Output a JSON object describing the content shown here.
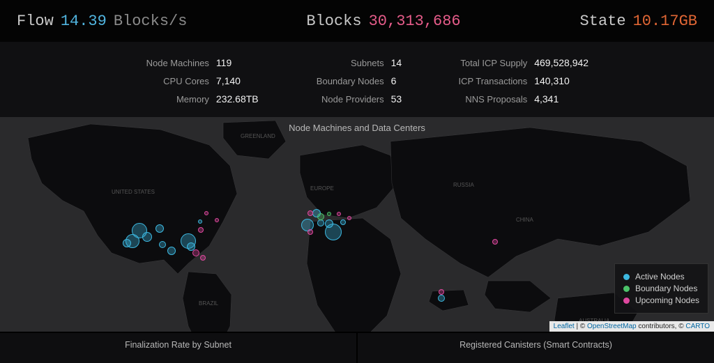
{
  "colors": {
    "bg_page": "#000000",
    "bg_stats": "#101012",
    "bg_map": "#2a2a2c",
    "land": "#0c0c0e",
    "label_muted": "#9a9a9a",
    "text": "#e8e8e8",
    "flow": "#51b5e0",
    "blocks": "#e65c8a",
    "state": "#e06634",
    "active": "#3db8e0",
    "boundary": "#4cc46a",
    "upcoming": "#e048a0"
  },
  "top": {
    "flow": {
      "label": "Flow",
      "value": "14.39",
      "unit": "Blocks/s"
    },
    "blocks": {
      "label": "Blocks",
      "value": "30,313,686"
    },
    "state": {
      "label": "State",
      "value": "10.17",
      "unit": "GB"
    }
  },
  "stats": {
    "col1": [
      {
        "label": "Node Machines",
        "value": "119"
      },
      {
        "label": "CPU Cores",
        "value": "7,140"
      },
      {
        "label": "Memory",
        "value": "232.68TB"
      }
    ],
    "col2": [
      {
        "label": "Subnets",
        "value": "14"
      },
      {
        "label": "Boundary Nodes",
        "value": "6"
      },
      {
        "label": "Node Providers",
        "value": "53"
      }
    ],
    "col3": [
      {
        "label": "Total ICP Supply",
        "value": "469,528,942"
      },
      {
        "label": "ICP Transactions",
        "value": "140,310"
      },
      {
        "label": "NNS Proposals",
        "value": "4,341"
      }
    ]
  },
  "map": {
    "title": "Node Machines and Data Centers",
    "legend": {
      "active": "Active Nodes",
      "boundary": "Boundary Nodes",
      "upcoming": "Upcoming Nodes"
    },
    "attribution": {
      "leaflet": "Leaflet",
      "sep": " | © ",
      "osm": "OpenStreetMap",
      "mid": " contributors, © ",
      "carto": "CARTO"
    },
    "markers": [
      {
        "x": 19.5,
        "y": 53.0,
        "r": 11,
        "kind": "active"
      },
      {
        "x": 20.6,
        "y": 55.8,
        "r": 7,
        "kind": "active"
      },
      {
        "x": 18.6,
        "y": 57.7,
        "r": 10,
        "kind": "active"
      },
      {
        "x": 17.8,
        "y": 58.8,
        "r": 6,
        "kind": "active"
      },
      {
        "x": 22.4,
        "y": 52.1,
        "r": 6,
        "kind": "active"
      },
      {
        "x": 22.8,
        "y": 59.4,
        "r": 5,
        "kind": "active"
      },
      {
        "x": 24.0,
        "y": 62.3,
        "r": 6,
        "kind": "active"
      },
      {
        "x": 26.4,
        "y": 57.7,
        "r": 11,
        "kind": "active"
      },
      {
        "x": 26.8,
        "y": 60.3,
        "r": 6,
        "kind": "active"
      },
      {
        "x": 27.4,
        "y": 63.2,
        "r": 5,
        "kind": "upcoming"
      },
      {
        "x": 28.4,
        "y": 65.5,
        "r": 4,
        "kind": "upcoming"
      },
      {
        "x": 28.1,
        "y": 52.6,
        "r": 4,
        "kind": "upcoming"
      },
      {
        "x": 28.0,
        "y": 48.7,
        "r": 3,
        "kind": "active"
      },
      {
        "x": 28.9,
        "y": 44.8,
        "r": 3,
        "kind": "upcoming"
      },
      {
        "x": 30.4,
        "y": 48.1,
        "r": 3,
        "kind": "upcoming"
      },
      {
        "x": 43.1,
        "y": 50.3,
        "r": 9,
        "kind": "active"
      },
      {
        "x": 44.3,
        "y": 44.8,
        "r": 6,
        "kind": "active"
      },
      {
        "x": 44.9,
        "y": 49.4,
        "r": 5,
        "kind": "active"
      },
      {
        "x": 44.9,
        "y": 46.3,
        "r": 5,
        "kind": "boundary"
      },
      {
        "x": 43.5,
        "y": 44.8,
        "r": 4,
        "kind": "upcoming"
      },
      {
        "x": 43.5,
        "y": 53.5,
        "r": 4,
        "kind": "upcoming"
      },
      {
        "x": 46.1,
        "y": 49.7,
        "r": 6,
        "kind": "active"
      },
      {
        "x": 46.7,
        "y": 53.5,
        "r": 12,
        "kind": "active"
      },
      {
        "x": 48.0,
        "y": 49.0,
        "r": 4,
        "kind": "active"
      },
      {
        "x": 46.1,
        "y": 45.2,
        "r": 3,
        "kind": "boundary"
      },
      {
        "x": 47.5,
        "y": 45.2,
        "r": 3,
        "kind": "upcoming"
      },
      {
        "x": 48.9,
        "y": 47.1,
        "r": 3,
        "kind": "upcoming"
      },
      {
        "x": 69.3,
        "y": 58.0,
        "r": 4,
        "kind": "upcoming"
      },
      {
        "x": 61.8,
        "y": 84.5,
        "r": 5,
        "kind": "active"
      },
      {
        "x": 61.8,
        "y": 81.6,
        "r": 4,
        "kind": "upcoming"
      }
    ]
  },
  "panels": {
    "left": "Finalization Rate by Subnet",
    "right": "Registered Canisters (Smart Contracts)"
  }
}
